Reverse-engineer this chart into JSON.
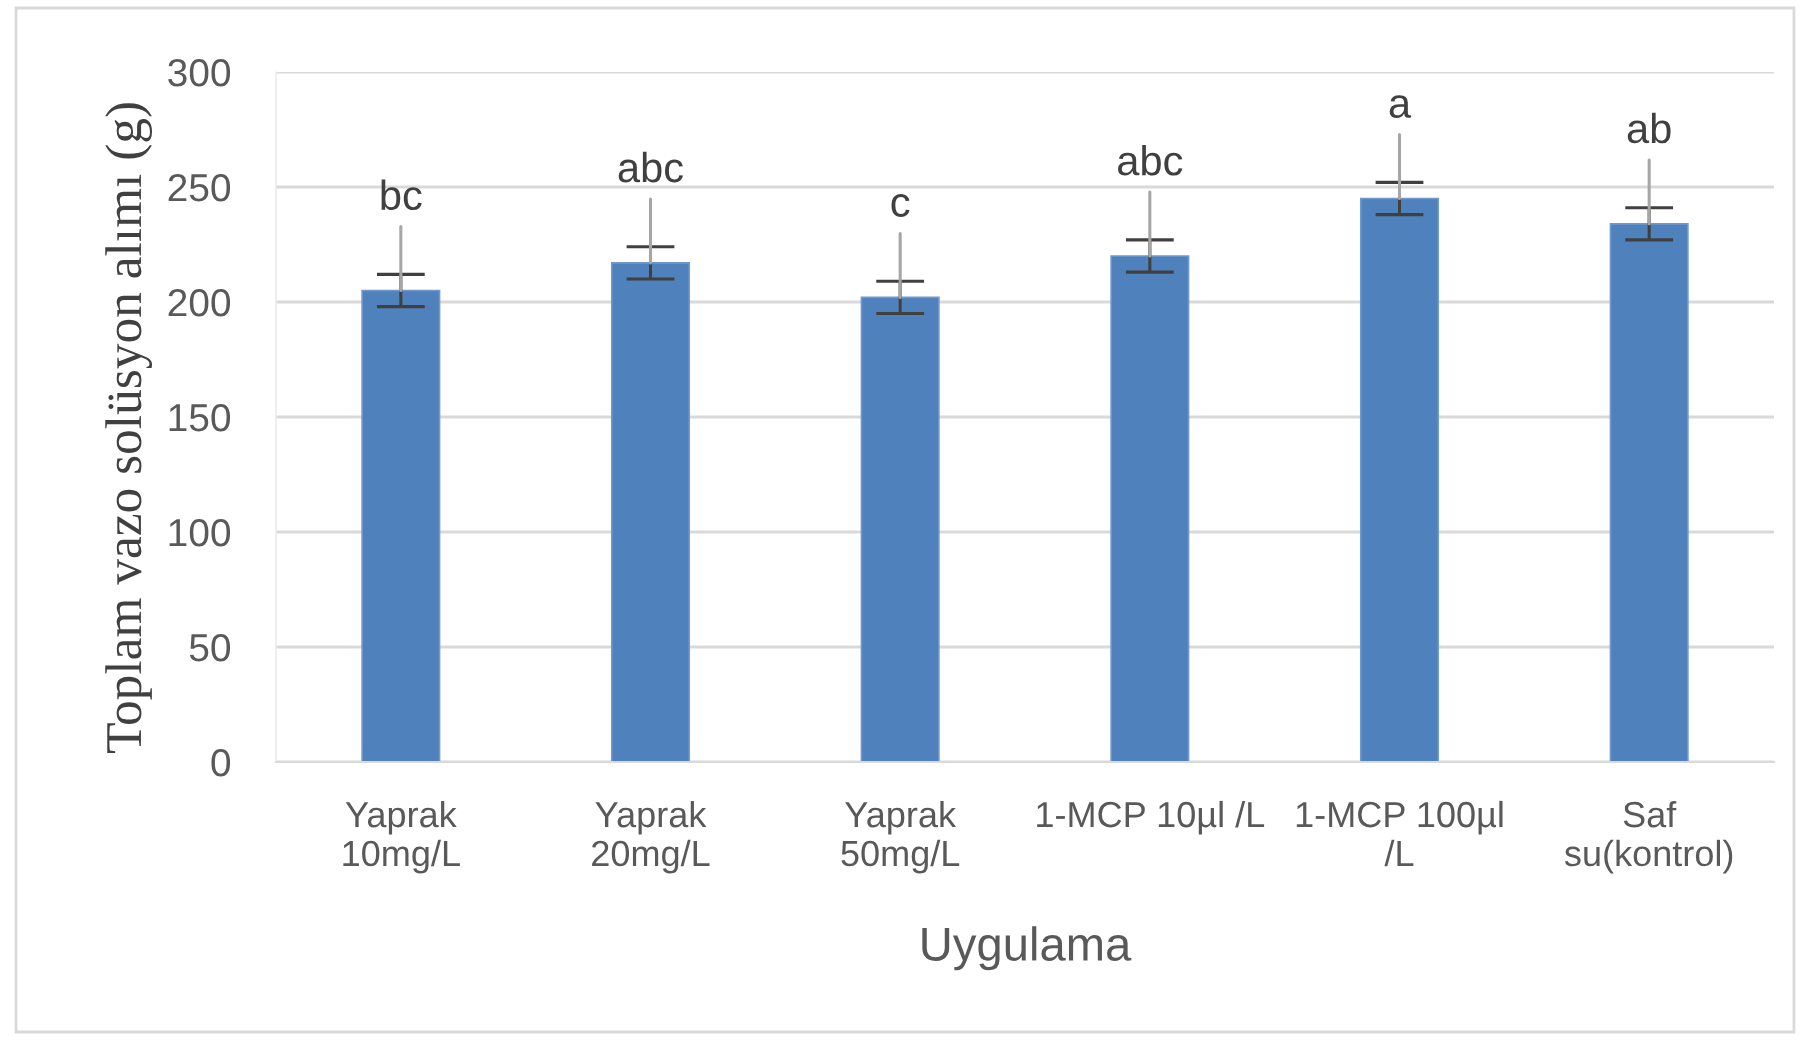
{
  "chart_data": {
    "type": "bar",
    "xlabel": "Uygulama",
    "ylabel": "Toplam vazo solüsyon alımı (g)",
    "categories": [
      "Yaprak\n10mg/L",
      "Yaprak\n20mg/L",
      "Yaprak\n50mg/L",
      "1-MCP 10µl /L",
      "1-MCP 100µl\n/L",
      "Saf\nsu(kontrol)"
    ],
    "values": [
      205,
      217,
      202,
      220,
      245,
      234
    ],
    "color": "#4f81bd",
    "errors": [
      7,
      7,
      7,
      7,
      7,
      7
    ],
    "ylim": [
      0,
      300
    ],
    "yticks": [
      0,
      50,
      100,
      150,
      200,
      250,
      300
    ],
    "grid": "y",
    "annotations": [
      {
        "text": "bc",
        "x": "Yaprak\n10mg/L",
        "y": 205
      },
      {
        "text": "abc",
        "x": "Yaprak\n20mg/L",
        "y": 217
      },
      {
        "text": "c",
        "x": "Yaprak\n50mg/L",
        "y": 202
      },
      {
        "text": "abc",
        "x": "1-MCP 10µl /L",
        "y": 220
      },
      {
        "text": "a",
        "x": "1-MCP 100µl\n/L",
        "y": 245
      },
      {
        "text": "ab",
        "x": "Saf\nsu(kontrol)",
        "y": 234
      }
    ]
  }
}
